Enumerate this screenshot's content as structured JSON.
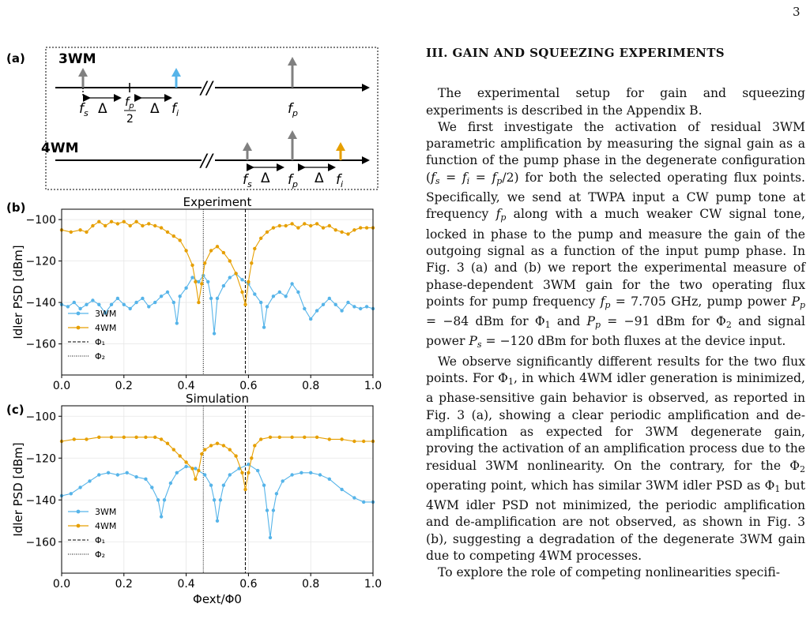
{
  "page_number": "3",
  "panels": {
    "a": {
      "label": "(a)",
      "3wm": {
        "title": "3WM",
        "fs": "f",
        "fs_sub": "s",
        "delta": "Δ",
        "fp2_num": "f",
        "fp2_num_sub": "p",
        "fp2_den": "2",
        "fi": "f",
        "fi_sub": "i",
        "fp": "f",
        "fp_sub": "p",
        "break": "//"
      },
      "4wm": {
        "title": "4WM",
        "fs": "f",
        "fs_sub": "s",
        "delta": "Δ",
        "fp": "f",
        "fp_sub": "p",
        "fi": "f",
        "fi_sub": "i",
        "break": "//"
      },
      "colors": {
        "grey": "#808080",
        "blue": "#56B4E9",
        "orange": "#E69F00"
      }
    },
    "b": {
      "label": "(b)"
    },
    "c": {
      "label": "(c)"
    }
  },
  "chart_data": [
    {
      "type": "line",
      "title": "Experiment",
      "ylabel": "Idler PSD [dBm]",
      "xlabel": "",
      "xlim": [
        0.0,
        1.0
      ],
      "ylim": [
        -175,
        -95
      ],
      "xticks": [
        "0.0",
        "0.2",
        "0.4",
        "0.6",
        "0.8",
        "1.0"
      ],
      "yticks": [
        "−100",
        "−120",
        "−140",
        "−160"
      ],
      "ytick_values": [
        -100,
        -120,
        -140,
        -160
      ],
      "grid": true,
      "vlines": [
        {
          "x": 0.59,
          "style": "dashed",
          "name": "Φ1"
        },
        {
          "x": 0.455,
          "style": "dotted",
          "name": "Φ2"
        }
      ],
      "legend": {
        "placement": "bottom-left",
        "entries": [
          "3WM",
          "4WM",
          "Φ₁",
          "Φ₂"
        ]
      },
      "series": [
        {
          "name": "3WM",
          "color": "#56B4E9",
          "points": [
            [
              0.0,
              -141
            ],
            [
              0.02,
              -142
            ],
            [
              0.04,
              -140
            ],
            [
              0.06,
              -143
            ],
            [
              0.08,
              -141
            ],
            [
              0.1,
              -139
            ],
            [
              0.12,
              -141
            ],
            [
              0.14,
              -145
            ],
            [
              0.16,
              -141
            ],
            [
              0.18,
              -138
            ],
            [
              0.2,
              -141
            ],
            [
              0.22,
              -143
            ],
            [
              0.24,
              -140
            ],
            [
              0.26,
              -138
            ],
            [
              0.28,
              -142
            ],
            [
              0.3,
              -140
            ],
            [
              0.32,
              -137
            ],
            [
              0.34,
              -135
            ],
            [
              0.36,
              -140
            ],
            [
              0.37,
              -150
            ],
            [
              0.38,
              -137
            ],
            [
              0.4,
              -133
            ],
            [
              0.42,
              -128
            ],
            [
              0.44,
              -130
            ],
            [
              0.455,
              -127
            ],
            [
              0.47,
              -130
            ],
            [
              0.48,
              -138
            ],
            [
              0.49,
              -155
            ],
            [
              0.5,
              -138
            ],
            [
              0.52,
              -132
            ],
            [
              0.54,
              -128
            ],
            [
              0.56,
              -126
            ],
            [
              0.58,
              -129
            ],
            [
              0.6,
              -131
            ],
            [
              0.62,
              -136
            ],
            [
              0.64,
              -140
            ],
            [
              0.65,
              -152
            ],
            [
              0.66,
              -142
            ],
            [
              0.68,
              -137
            ],
            [
              0.7,
              -135
            ],
            [
              0.72,
              -137
            ],
            [
              0.74,
              -131
            ],
            [
              0.76,
              -135
            ],
            [
              0.78,
              -143
            ],
            [
              0.8,
              -148
            ],
            [
              0.82,
              -144
            ],
            [
              0.84,
              -141
            ],
            [
              0.86,
              -138
            ],
            [
              0.88,
              -141
            ],
            [
              0.9,
              -144
            ],
            [
              0.92,
              -140
            ],
            [
              0.94,
              -142
            ],
            [
              0.96,
              -143
            ],
            [
              0.98,
              -142
            ],
            [
              1.0,
              -143
            ]
          ]
        },
        {
          "name": "4WM",
          "color": "#E69F00",
          "points": [
            [
              0.0,
              -105
            ],
            [
              0.03,
              -106
            ],
            [
              0.06,
              -105
            ],
            [
              0.08,
              -106
            ],
            [
              0.1,
              -103
            ],
            [
              0.12,
              -101
            ],
            [
              0.14,
              -103
            ],
            [
              0.16,
              -101
            ],
            [
              0.18,
              -102
            ],
            [
              0.2,
              -101
            ],
            [
              0.22,
              -103
            ],
            [
              0.24,
              -101
            ],
            [
              0.26,
              -103
            ],
            [
              0.28,
              -102
            ],
            [
              0.3,
              -103
            ],
            [
              0.32,
              -104
            ],
            [
              0.34,
              -106
            ],
            [
              0.36,
              -108
            ],
            [
              0.38,
              -110
            ],
            [
              0.4,
              -115
            ],
            [
              0.42,
              -122
            ],
            [
              0.43,
              -130
            ],
            [
              0.44,
              -140
            ],
            [
              0.45,
              -131
            ],
            [
              0.46,
              -121
            ],
            [
              0.48,
              -115
            ],
            [
              0.5,
              -113
            ],
            [
              0.52,
              -116
            ],
            [
              0.54,
              -120
            ],
            [
              0.56,
              -126
            ],
            [
              0.58,
              -135
            ],
            [
              0.59,
              -141
            ],
            [
              0.6,
              -130
            ],
            [
              0.61,
              -121
            ],
            [
              0.62,
              -114
            ],
            [
              0.64,
              -109
            ],
            [
              0.66,
              -106
            ],
            [
              0.68,
              -104
            ],
            [
              0.7,
              -103
            ],
            [
              0.72,
              -103
            ],
            [
              0.74,
              -102
            ],
            [
              0.76,
              -104
            ],
            [
              0.78,
              -102
            ],
            [
              0.8,
              -103
            ],
            [
              0.82,
              -102
            ],
            [
              0.84,
              -104
            ],
            [
              0.86,
              -103
            ],
            [
              0.88,
              -105
            ],
            [
              0.9,
              -106
            ],
            [
              0.92,
              -107
            ],
            [
              0.94,
              -105
            ],
            [
              0.96,
              -104
            ],
            [
              0.98,
              -104
            ],
            [
              1.0,
              -104
            ]
          ]
        }
      ]
    },
    {
      "type": "line",
      "title": "Simulation",
      "ylabel": "Idler PSD [dBm]",
      "xlabel": "Φext/Φ0",
      "xlim": [
        0.0,
        1.0
      ],
      "ylim": [
        -175,
        -95
      ],
      "xticks": [
        "0.0",
        "0.2",
        "0.4",
        "0.6",
        "0.8",
        "1.0"
      ],
      "yticks": [
        "−100",
        "−120",
        "−140",
        "−160"
      ],
      "ytick_values": [
        -100,
        -120,
        -140,
        -160
      ],
      "grid": true,
      "vlines": [
        {
          "x": 0.59,
          "style": "dashed",
          "name": "Φ1"
        },
        {
          "x": 0.455,
          "style": "dotted",
          "name": "Φ2"
        }
      ],
      "legend": {
        "placement": "bottom-left",
        "entries": [
          "3WM",
          "4WM",
          "Φ₁",
          "Φ₂"
        ]
      },
      "series": [
        {
          "name": "3WM",
          "color": "#56B4E9",
          "points": [
            [
              0.0,
              -138
            ],
            [
              0.03,
              -137
            ],
            [
              0.06,
              -134
            ],
            [
              0.09,
              -131
            ],
            [
              0.12,
              -128
            ],
            [
              0.15,
              -127
            ],
            [
              0.18,
              -128
            ],
            [
              0.21,
              -127
            ],
            [
              0.24,
              -129
            ],
            [
              0.27,
              -130
            ],
            [
              0.29,
              -134
            ],
            [
              0.31,
              -140
            ],
            [
              0.32,
              -148
            ],
            [
              0.33,
              -140
            ],
            [
              0.35,
              -132
            ],
            [
              0.37,
              -127
            ],
            [
              0.4,
              -124
            ],
            [
              0.43,
              -125
            ],
            [
              0.46,
              -128
            ],
            [
              0.48,
              -133
            ],
            [
              0.49,
              -140
            ],
            [
              0.5,
              -150
            ],
            [
              0.51,
              -140
            ],
            [
              0.52,
              -133
            ],
            [
              0.54,
              -128
            ],
            [
              0.57,
              -125
            ],
            [
              0.6,
              -123
            ],
            [
              0.63,
              -126
            ],
            [
              0.65,
              -133
            ],
            [
              0.66,
              -145
            ],
            [
              0.67,
              -158
            ],
            [
              0.68,
              -145
            ],
            [
              0.69,
              -137
            ],
            [
              0.71,
              -131
            ],
            [
              0.74,
              -128
            ],
            [
              0.77,
              -127
            ],
            [
              0.8,
              -127
            ],
            [
              0.83,
              -128
            ],
            [
              0.86,
              -130
            ],
            [
              0.9,
              -135
            ],
            [
              0.94,
              -139
            ],
            [
              0.97,
              -141
            ],
            [
              1.0,
              -141
            ]
          ]
        },
        {
          "name": "4WM",
          "color": "#E69F00",
          "points": [
            [
              0.0,
              -112
            ],
            [
              0.04,
              -111
            ],
            [
              0.08,
              -111
            ],
            [
              0.12,
              -110
            ],
            [
              0.16,
              -110
            ],
            [
              0.2,
              -110
            ],
            [
              0.24,
              -110
            ],
            [
              0.27,
              -110
            ],
            [
              0.3,
              -110
            ],
            [
              0.32,
              -111
            ],
            [
              0.34,
              -113
            ],
            [
              0.36,
              -116
            ],
            [
              0.38,
              -119
            ],
            [
              0.4,
              -122
            ],
            [
              0.42,
              -125
            ],
            [
              0.43,
              -130
            ],
            [
              0.44,
              -126
            ],
            [
              0.45,
              -118
            ],
            [
              0.46,
              -116
            ],
            [
              0.48,
              -114
            ],
            [
              0.5,
              -113
            ],
            [
              0.52,
              -114
            ],
            [
              0.54,
              -116
            ],
            [
              0.56,
              -119
            ],
            [
              0.58,
              -127
            ],
            [
              0.59,
              -135
            ],
            [
              0.6,
              -127
            ],
            [
              0.61,
              -120
            ],
            [
              0.62,
              -114
            ],
            [
              0.64,
              -111
            ],
            [
              0.67,
              -110
            ],
            [
              0.7,
              -110
            ],
            [
              0.74,
              -110
            ],
            [
              0.78,
              -110
            ],
            [
              0.82,
              -110
            ],
            [
              0.86,
              -111
            ],
            [
              0.9,
              -111
            ],
            [
              0.94,
              -112
            ],
            [
              0.97,
              -112
            ],
            [
              1.0,
              -112
            ]
          ]
        }
      ]
    }
  ],
  "text": {
    "section_title": "III.   GAIN AND SQUEEZING EXPERIMENTS",
    "p1": "The experimental setup for gain and squeezing experiments is described in the Appendix B.",
    "p2_a": "We first investigate the activation of residual 3WM parametric amplification by measuring the signal gain as a function of the pump phase in the degenerate configuration (",
    "p2_b": ") for both the selected operating flux points. Specifically, we send at TWPA input a CW pump tone at frequency ",
    "p2_c": " along with a much weaker CW signal tone, locked in phase to the pump and measure the gain of the outgoing signal as a function of the input pump phase. In Fig. 3 (a) and (b) we report the experimental measure of phase-dependent 3WM gain for the two operating flux points for pump frequency ",
    "p2_d": " = 7.705 GHz, pump power ",
    "p2_e": " = −84 dBm for Φ",
    "p2_f": " and ",
    "p2_g": " = −91 dBm for Φ",
    "p2_h": " and signal power ",
    "p2_i": " = −120 dBm for both fluxes at the device input.",
    "p3_a": "We observe significantly different results for the two flux points. For Φ",
    "p3_b": ", in which 4WM idler generation is minimized, a phase-sensitive gain behavior is observed, as reported in Fig. 3 (a), showing a clear periodic amplification and de-amplification as expected for 3WM degenerate gain, proving the activation of an amplification process due to the residual 3WM nonlinearity. On the contrary, for the Φ",
    "p3_c": " operating point, which has similar 3WM idler PSD as Φ",
    "p3_d": " but 4WM idler PSD not minimized, the periodic amplification and de-amplification are not observed, as shown in Fig. 3 (b), suggesting a degradation of the degenerate 3WM gain due to competing 4WM processes.",
    "p4": "To explore the role of competing nonlinearities specifi-",
    "degenerate_eq": "f_s = f_i = f_p/2"
  }
}
